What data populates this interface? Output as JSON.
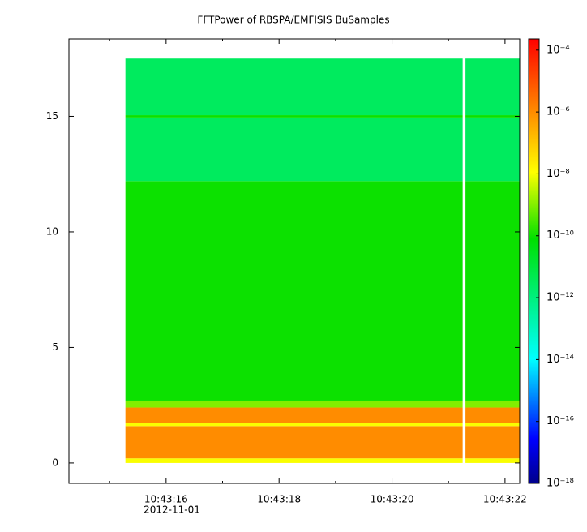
{
  "chart_data": {
    "type": "spectrogram",
    "title": "FFTPower of RBSPA/EMFISIS  BuSamples",
    "date_label": "2012-11-01",
    "xlim": [
      14.28,
      22.26
    ],
    "xticks": [
      {
        "value": 16,
        "label": "10:43:16"
      },
      {
        "value": 18,
        "label": "10:43:18"
      },
      {
        "value": 20,
        "label": "10:43:20"
      },
      {
        "value": 22,
        "label": "10:43:22"
      }
    ],
    "xminor": [
      15,
      17,
      19,
      21
    ],
    "ylim": [
      -0.88,
      18.35
    ],
    "yticks": [
      0,
      5,
      10,
      15
    ],
    "x_segments": [
      [
        15.28,
        21.25
      ],
      [
        21.3,
        22.26
      ]
    ],
    "y_bands": [
      [
        0,
        0.2
      ],
      [
        0.2,
        1.6
      ],
      [
        1.6,
        1.75
      ],
      [
        1.75,
        2.4
      ],
      [
        2.4,
        2.7
      ],
      [
        2.7,
        12.2
      ],
      [
        12.2,
        14.95
      ],
      [
        14.95,
        15.05
      ],
      [
        15.05,
        17.5
      ]
    ],
    "values": [
      [
        1e-08,
        1e-06,
        1e-08,
        1e-06,
        1e-09,
        1e-10,
        3e-12,
        1e-10,
        3e-12
      ],
      [
        1e-08,
        1e-06,
        1e-08,
        1e-06,
        1e-09,
        1e-10,
        3e-12,
        1e-10,
        3e-12
      ]
    ],
    "zlog": true,
    "zlim": [
      1e-18,
      0.00023
    ],
    "zticks": [
      {
        "value": 0.0001,
        "label": "10⁻⁴"
      },
      {
        "value": 1e-06,
        "label": "10⁻⁶"
      },
      {
        "value": 1e-08,
        "label": "10⁻⁸"
      },
      {
        "value": 1e-10,
        "label": "10⁻¹⁰"
      },
      {
        "value": 1e-12,
        "label": "10⁻¹²"
      },
      {
        "value": 1e-14,
        "label": "10⁻¹⁴"
      },
      {
        "value": 1e-16,
        "label": "10⁻¹⁶"
      },
      {
        "value": 1e-18,
        "label": "10⁻¹⁸"
      }
    ],
    "colormap": [
      "#00008b",
      "#0000ff",
      "#00ffff",
      "#00e000",
      "#ffff00",
      "#ff8000",
      "#ff0000"
    ],
    "colormap_stops": [
      0,
      0.1,
      0.28,
      0.55,
      0.7,
      0.85,
      1
    ]
  }
}
